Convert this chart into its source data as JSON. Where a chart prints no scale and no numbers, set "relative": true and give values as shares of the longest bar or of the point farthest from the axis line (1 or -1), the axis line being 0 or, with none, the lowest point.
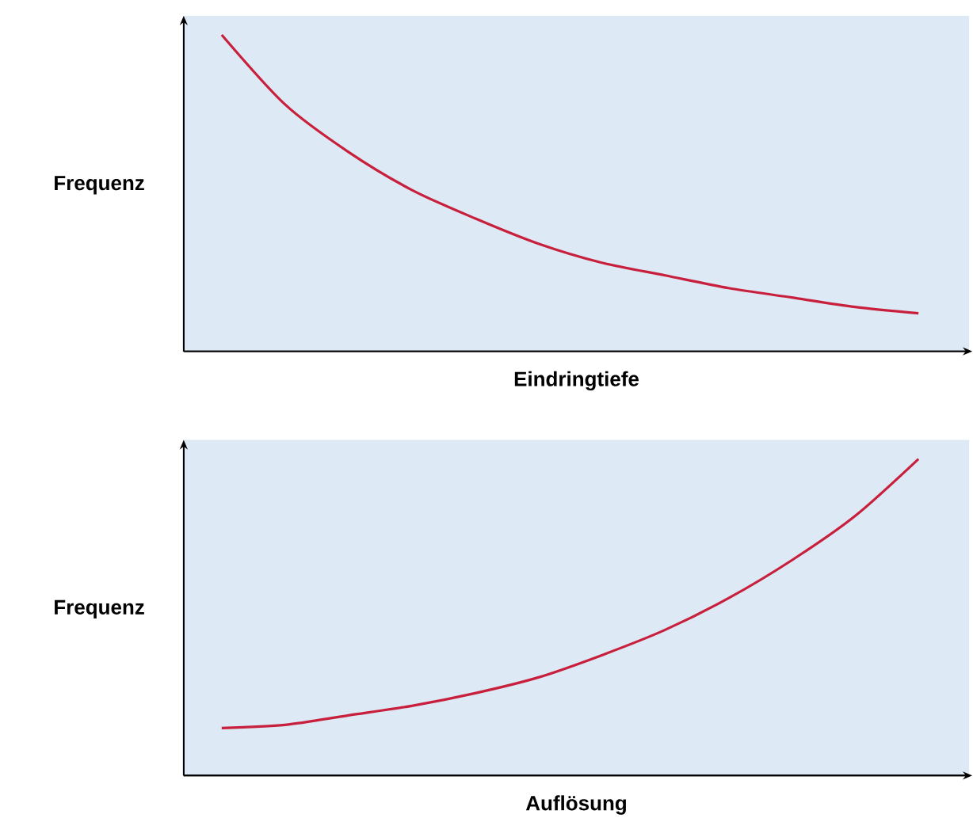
{
  "chart_data": [
    {
      "type": "line",
      "relative": true,
      "xlabel": "Eindringtiefe",
      "ylabel": "Frequenz",
      "categories": [
        null,
        null,
        null,
        null,
        null,
        null,
        null,
        null,
        null,
        null,
        null,
        null
      ],
      "series": [
        {
          "color": "#c8203c",
          "values": [
            1.0,
            0.78,
            0.63,
            0.51,
            0.42,
            0.34,
            0.28,
            0.24,
            0.2,
            0.17,
            0.14,
            0.12
          ]
        }
      ]
    },
    {
      "type": "line",
      "relative": true,
      "xlabel": "Auflösung",
      "ylabel": "Frequenz",
      "categories": [
        null,
        null,
        null,
        null,
        null,
        null,
        null,
        null,
        null,
        null,
        null,
        null
      ],
      "series": [
        {
          "color": "#c8203c",
          "values": [
            0.15,
            0.16,
            0.19,
            0.22,
            0.26,
            0.31,
            0.38,
            0.46,
            0.56,
            0.68,
            0.82,
            1.0
          ]
        }
      ]
    }
  ]
}
